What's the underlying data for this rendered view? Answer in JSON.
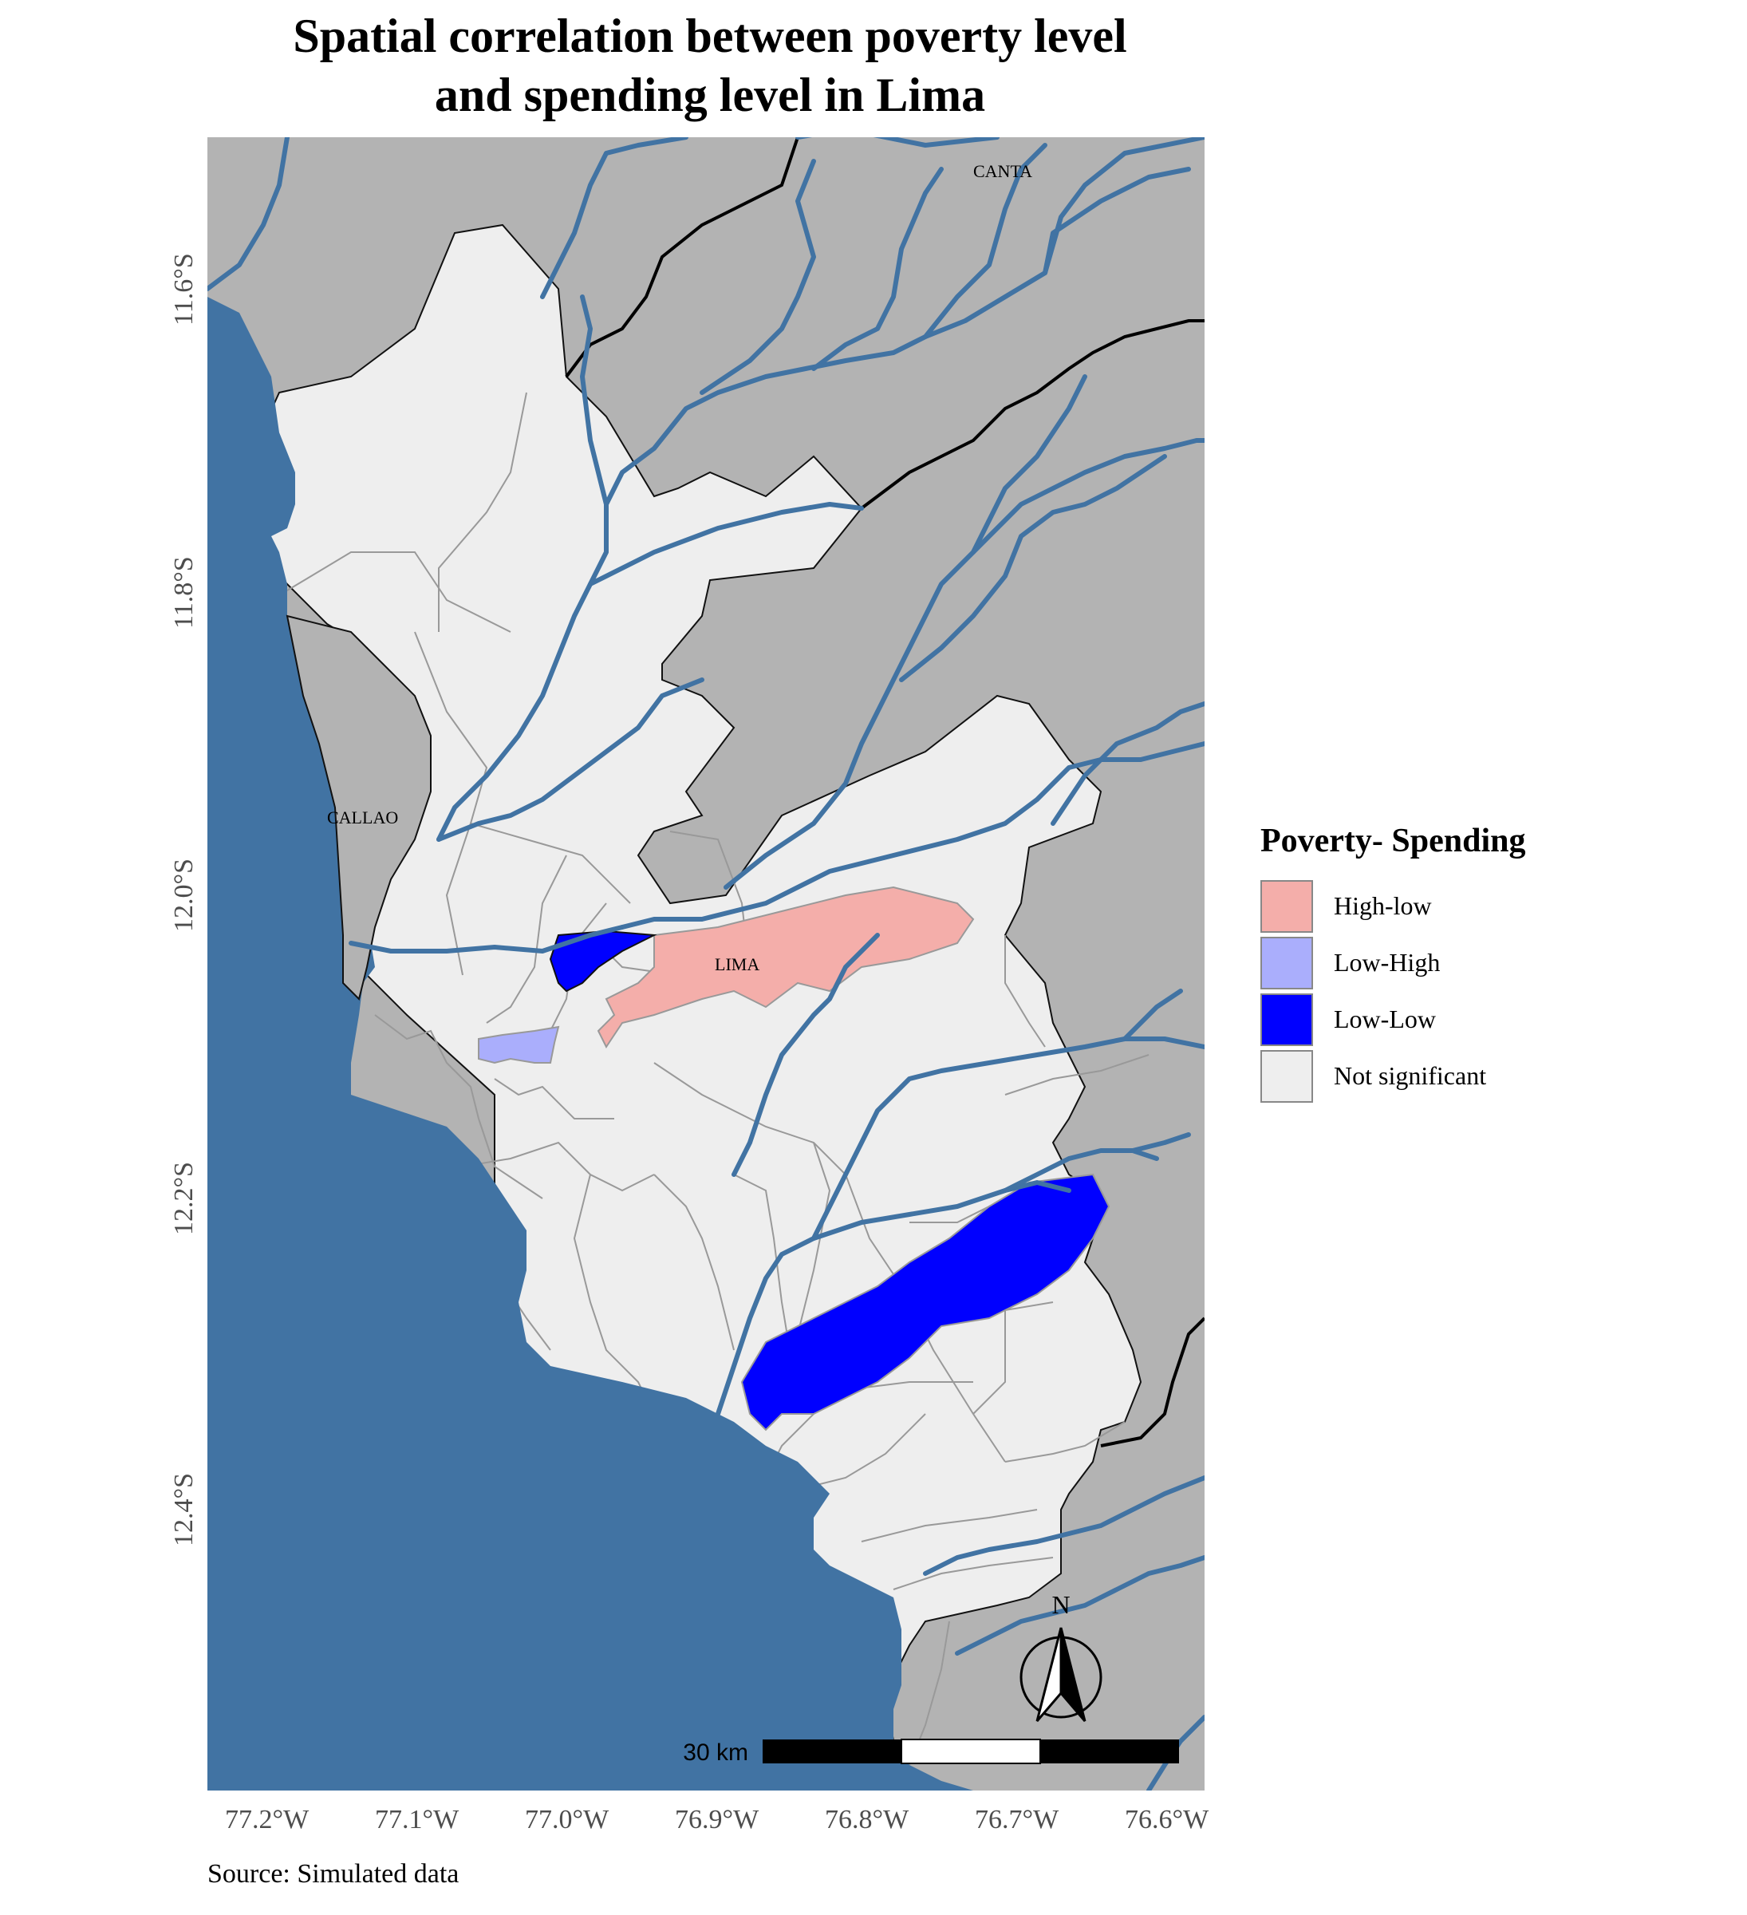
{
  "title_line1": "Spatial correlation between poverty level",
  "title_line2": "and spending level in Lima",
  "caption": "Source: Simulated data",
  "colors": {
    "sea": "#4173a3",
    "land_outside": "#b3b3b3",
    "not_significant": "#eeeeee",
    "high_low": "#f4aeaa",
    "low_high": "#aaaefc",
    "low_low": "#0000ff",
    "river": "#4173a3",
    "boundary": "#000000",
    "district_border": "#999999"
  },
  "y_axis": {
    "ticks": [
      "11.6°S",
      "11.8°S",
      "12.0°S",
      "12.2°S",
      "12.4°S"
    ]
  },
  "x_axis": {
    "ticks": [
      "77.2°W",
      "77.1°W",
      "77.0°W",
      "76.9°W",
      "76.8°W",
      "76.7°W",
      "76.6°W"
    ]
  },
  "place_labels": {
    "canta": "CANTA",
    "callao": "CALLAO",
    "lima": "LIMA"
  },
  "legend": {
    "title": "Poverty- Spending",
    "items": [
      {
        "label": "High-low",
        "color": "#f4aeaa"
      },
      {
        "label": "Low-High",
        "color": "#aaaefc"
      },
      {
        "label": "Low-Low",
        "color": "#0000ff"
      },
      {
        "label": "Not significant",
        "color": "#eeeeee"
      }
    ]
  },
  "scale_bar": {
    "label": "30 km"
  },
  "north_arrow": {
    "label": "N"
  }
}
